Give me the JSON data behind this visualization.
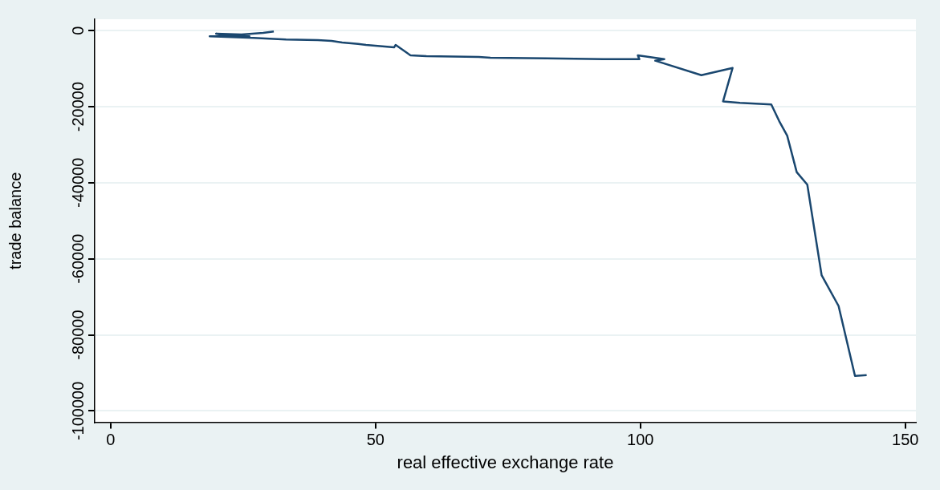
{
  "chart_data": {
    "type": "line",
    "xlabel": "real effective exchange rate",
    "ylabel": "trade balance",
    "xlim": [
      -3,
      152
    ],
    "xticks": [
      0,
      50,
      100,
      150
    ],
    "ylim": [
      -103000,
      3000
    ],
    "yticks": [
      0,
      -20000,
      -40000,
      -60000,
      -80000,
      -100000
    ],
    "grid": "y",
    "legend": false,
    "marker": "none",
    "line_style": "solid",
    "series": [
      {
        "color": "#1a476f",
        "x": [
          30.8,
          28.8,
          24.7,
          19.9,
          21.7,
          26.2,
          18.7,
          27,
          30,
          33.1,
          39.1,
          41.7,
          43.7,
          46.7,
          48.2,
          53.5,
          53.8,
          56.6,
          59.6,
          69.5,
          71.7,
          82.3,
          93,
          99.8,
          99.5,
          104.5,
          102.8,
          111.5,
          117.4,
          115.6,
          118.8,
          124.7,
          126.2,
          127.7,
          129.5,
          131.5,
          134.2,
          137.4,
          140.5,
          142.7
        ],
        "values": [
          -200,
          -600,
          -1000,
          -800,
          -1250,
          -1460,
          -1460,
          -1900,
          -2100,
          -2300,
          -2500,
          -2700,
          -3100,
          -3500,
          -3750,
          -4400,
          -3750,
          -6500,
          -6700,
          -6900,
          -7100,
          -7300,
          -7500,
          -7500,
          -6500,
          -7500,
          -7900,
          -11700,
          -9800,
          -18600,
          -19000,
          -19400,
          -23800,
          -27600,
          -37200,
          -40500,
          -64300,
          -72400,
          -90800,
          -90600
        ]
      }
    ]
  }
}
